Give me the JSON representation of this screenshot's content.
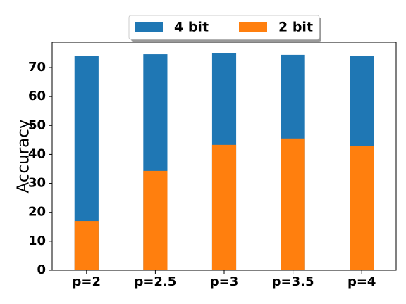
{
  "chart_data": {
    "type": "bar",
    "barmode": "overlay",
    "ylabel": "Accuracy",
    "categories": [
      "p=2",
      "p=2.5",
      "p=3",
      "p=3.5",
      "p=4"
    ],
    "series": [
      {
        "name": "4 bit",
        "color": "#1f77b4",
        "values": [
          73.9,
          74.6,
          74.9,
          74.4,
          73.9
        ]
      },
      {
        "name": "2 bit",
        "color": "#ff7f0e",
        "values": [
          17.0,
          34.3,
          43.3,
          45.5,
          42.8
        ]
      }
    ],
    "ylim": [
      0,
      78.75
    ],
    "yticks": [
      0,
      10,
      20,
      30,
      40,
      50,
      60,
      70
    ],
    "legend": "top"
  }
}
